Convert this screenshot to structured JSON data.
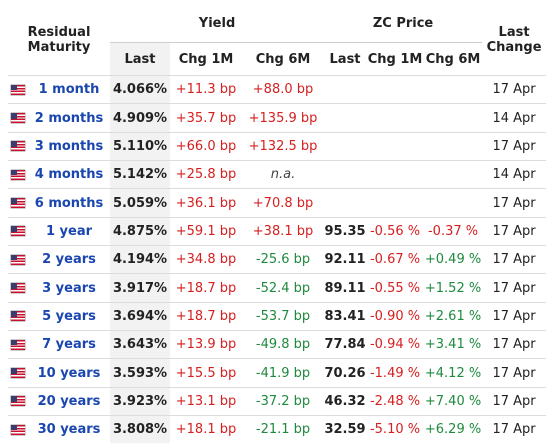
{
  "headers": {
    "maturity": "Residual Maturity",
    "yield_group": "Yield",
    "zc_group": "ZC Price",
    "last_change": "Last Change",
    "yield_last": "Last",
    "yield_chg1m": "Chg 1M",
    "yield_chg6m": "Chg 6M",
    "zc_last": "Last",
    "zc_chg1m": "Chg 1M",
    "zc_chg6m": "Chg 6M"
  },
  "colors": {
    "link": "#1a46b0",
    "negative": "#d61f1f",
    "positive": "#1f8a3e"
  },
  "rows": [
    {
      "flag": "us-flag-icon",
      "maturity": "1 month",
      "last": "4.066%",
      "chg1m": "+11.3 bp",
      "chg1m_dir": "red",
      "chg6m": "+88.0 bp",
      "chg6m_dir": "red",
      "zc_last": "",
      "zc_chg1m": "",
      "zc_chg1m_dir": "",
      "zc_chg6m": "",
      "zc_chg6m_dir": "",
      "date": "17 Apr"
    },
    {
      "flag": "us-flag-icon",
      "maturity": "2 months",
      "last": "4.909%",
      "chg1m": "+35.7 bp",
      "chg1m_dir": "red",
      "chg6m": "+135.9 bp",
      "chg6m_dir": "red",
      "zc_last": "",
      "zc_chg1m": "",
      "zc_chg1m_dir": "",
      "zc_chg6m": "",
      "zc_chg6m_dir": "",
      "date": "14 Apr"
    },
    {
      "flag": "us-flag-icon",
      "maturity": "3 months",
      "last": "5.110%",
      "chg1m": "+66.0 bp",
      "chg1m_dir": "red",
      "chg6m": "+132.5 bp",
      "chg6m_dir": "red",
      "zc_last": "",
      "zc_chg1m": "",
      "zc_chg1m_dir": "",
      "zc_chg6m": "",
      "zc_chg6m_dir": "",
      "date": "17 Apr"
    },
    {
      "flag": "us-flag-icon",
      "maturity": "4 months",
      "last": "5.142%",
      "chg1m": "+25.8 bp",
      "chg1m_dir": "red",
      "chg6m": "n.a.",
      "chg6m_dir": "na",
      "zc_last": "",
      "zc_chg1m": "",
      "zc_chg1m_dir": "",
      "zc_chg6m": "",
      "zc_chg6m_dir": "",
      "date": "14 Apr"
    },
    {
      "flag": "us-flag-icon",
      "maturity": "6 months",
      "last": "5.059%",
      "chg1m": "+36.1 bp",
      "chg1m_dir": "red",
      "chg6m": "+70.8 bp",
      "chg6m_dir": "red",
      "zc_last": "",
      "zc_chg1m": "",
      "zc_chg1m_dir": "",
      "zc_chg6m": "",
      "zc_chg6m_dir": "",
      "date": "17 Apr"
    },
    {
      "flag": "us-flag-icon",
      "maturity": "1 year",
      "last": "4.875%",
      "chg1m": "+59.1 bp",
      "chg1m_dir": "red",
      "chg6m": "+38.1 bp",
      "chg6m_dir": "red",
      "zc_last": "95.35",
      "zc_chg1m": "-0.56 %",
      "zc_chg1m_dir": "red",
      "zc_chg6m": "-0.37 %",
      "zc_chg6m_dir": "red",
      "date": "17 Apr"
    },
    {
      "flag": "us-flag-icon",
      "maturity": "2 years",
      "last": "4.194%",
      "chg1m": "+34.8 bp",
      "chg1m_dir": "red",
      "chg6m": "-25.6 bp",
      "chg6m_dir": "green",
      "zc_last": "92.11",
      "zc_chg1m": "-0.67 %",
      "zc_chg1m_dir": "red",
      "zc_chg6m": "+0.49 %",
      "zc_chg6m_dir": "green",
      "date": "17 Apr"
    },
    {
      "flag": "us-flag-icon",
      "maturity": "3 years",
      "last": "3.917%",
      "chg1m": "+18.7 bp",
      "chg1m_dir": "red",
      "chg6m": "-52.4 bp",
      "chg6m_dir": "green",
      "zc_last": "89.11",
      "zc_chg1m": "-0.55 %",
      "zc_chg1m_dir": "red",
      "zc_chg6m": "+1.52 %",
      "zc_chg6m_dir": "green",
      "date": "17 Apr"
    },
    {
      "flag": "us-flag-icon",
      "maturity": "5 years",
      "last": "3.694%",
      "chg1m": "+18.7 bp",
      "chg1m_dir": "red",
      "chg6m": "-53.7 bp",
      "chg6m_dir": "green",
      "zc_last": "83.41",
      "zc_chg1m": "-0.90 %",
      "zc_chg1m_dir": "red",
      "zc_chg6m": "+2.61 %",
      "zc_chg6m_dir": "green",
      "date": "17 Apr"
    },
    {
      "flag": "us-flag-icon",
      "maturity": "7 years",
      "last": "3.643%",
      "chg1m": "+13.9 bp",
      "chg1m_dir": "red",
      "chg6m": "-49.8 bp",
      "chg6m_dir": "green",
      "zc_last": "77.84",
      "zc_chg1m": "-0.94 %",
      "zc_chg1m_dir": "red",
      "zc_chg6m": "+3.41 %",
      "zc_chg6m_dir": "green",
      "date": "17 Apr"
    },
    {
      "flag": "us-flag-icon",
      "maturity": "10 years",
      "last": "3.593%",
      "chg1m": "+15.5 bp",
      "chg1m_dir": "red",
      "chg6m": "-41.9 bp",
      "chg6m_dir": "green",
      "zc_last": "70.26",
      "zc_chg1m": "-1.49 %",
      "zc_chg1m_dir": "red",
      "zc_chg6m": "+4.12 %",
      "zc_chg6m_dir": "green",
      "date": "17 Apr"
    },
    {
      "flag": "us-flag-icon",
      "maturity": "20 years",
      "last": "3.923%",
      "chg1m": "+13.1 bp",
      "chg1m_dir": "red",
      "chg6m": "-37.2 bp",
      "chg6m_dir": "green",
      "zc_last": "46.32",
      "zc_chg1m": "-2.48 %",
      "zc_chg1m_dir": "red",
      "zc_chg6m": "+7.40 %",
      "zc_chg6m_dir": "green",
      "date": "17 Apr"
    },
    {
      "flag": "us-flag-icon",
      "maturity": "30 years",
      "last": "3.808%",
      "chg1m": "+18.1 bp",
      "chg1m_dir": "red",
      "chg6m": "-21.1 bp",
      "chg6m_dir": "green",
      "zc_last": "32.59",
      "zc_chg1m": "-5.10 %",
      "zc_chg1m_dir": "red",
      "zc_chg6m": "+6.29 %",
      "zc_chg6m_dir": "green",
      "date": "17 Apr"
    }
  ]
}
